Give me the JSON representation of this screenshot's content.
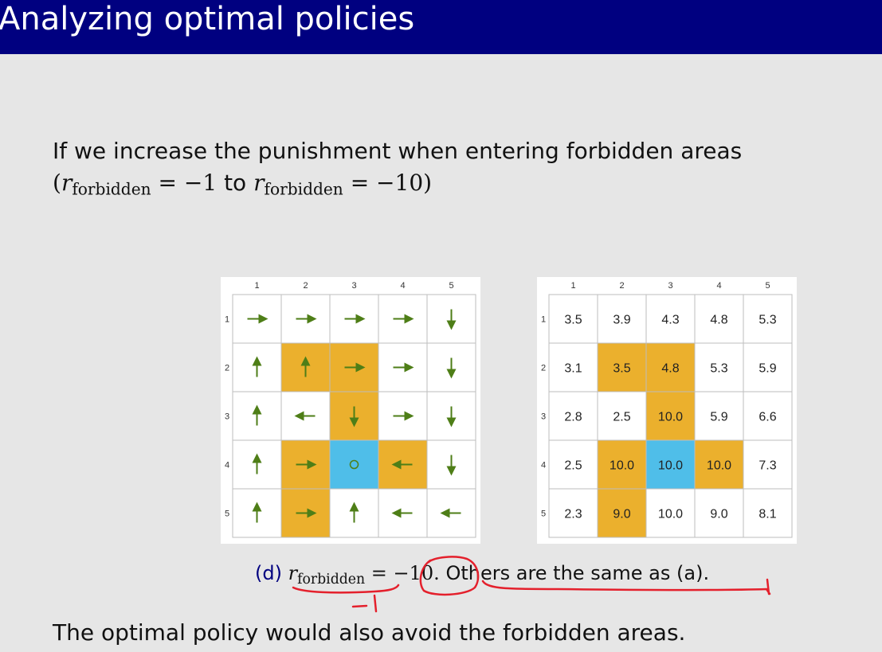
{
  "slide": {
    "title": "Analyzing optimal policies",
    "intro_text": "If we increase the punishment when entering forbidden areas",
    "intro_math": {
      "var": "r",
      "sub": "forbidden",
      "from_value": "= −1",
      "connector": "to",
      "to_value": "= −10"
    },
    "caption": {
      "tag": "(d)",
      "var": "r",
      "sub": "forbidden",
      "value": "= −10.",
      "rest": "Others are the same as (a)."
    },
    "conclusion": "The optimal policy would also avoid the forbidden areas."
  },
  "policy_grid": {
    "col_labels": [
      "1",
      "2",
      "3",
      "4",
      "5"
    ],
    "row_labels": [
      "1",
      "2",
      "3",
      "4",
      "5"
    ],
    "cells": [
      [
        "right",
        "right",
        "right",
        "right",
        "down"
      ],
      [
        "up",
        "up",
        "right",
        "right",
        "down"
      ],
      [
        "up",
        "left",
        "down",
        "right",
        "down"
      ],
      [
        "up",
        "right",
        "stay",
        "left",
        "down"
      ],
      [
        "up",
        "right",
        "up",
        "left",
        "left"
      ]
    ]
  },
  "value_grid": {
    "col_labels": [
      "1",
      "2",
      "3",
      "4",
      "5"
    ],
    "row_labels": [
      "1",
      "2",
      "3",
      "4",
      "5"
    ],
    "values": [
      [
        "3.5",
        "3.9",
        "4.3",
        "4.8",
        "5.3"
      ],
      [
        "3.1",
        "3.5",
        "4.8",
        "5.3",
        "5.9"
      ],
      [
        "2.8",
        "2.5",
        "10.0",
        "5.9",
        "6.6"
      ],
      [
        "2.5",
        "10.0",
        "10.0",
        "10.0",
        "7.3"
      ],
      [
        "2.3",
        "9.0",
        "10.0",
        "9.0",
        "8.1"
      ]
    ]
  },
  "cell_types": [
    [
      "normal",
      "normal",
      "normal",
      "normal",
      "normal"
    ],
    [
      "normal",
      "forbidden",
      "forbidden",
      "normal",
      "normal"
    ],
    [
      "normal",
      "normal",
      "forbidden",
      "normal",
      "normal"
    ],
    [
      "normal",
      "forbidden",
      "target",
      "forbidden",
      "normal"
    ],
    [
      "normal",
      "forbidden",
      "normal",
      "normal",
      "normal"
    ]
  ],
  "colors": {
    "title_bar": "#000080",
    "forbidden": "#EBB02D",
    "target": "#4FBEE9",
    "arrow": "#4E7E17",
    "annotation": "#E4202C"
  }
}
